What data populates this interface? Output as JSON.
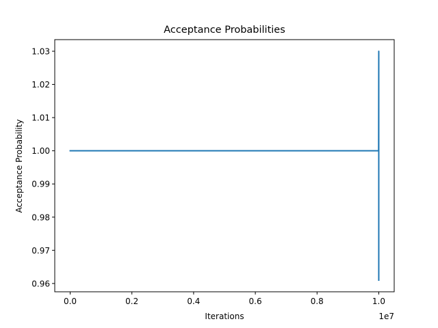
{
  "chart_data": {
    "type": "line",
    "title": "Acceptance Probabilities",
    "xlabel": "Iterations",
    "ylabel": "Acceptance Probability",
    "x_offset_label": "1e7",
    "xlim": [
      -0.05,
      1.05
    ],
    "ylim": [
      0.9575,
      1.0335
    ],
    "xticks": [
      0.0,
      0.2,
      0.4,
      0.6,
      0.8,
      1.0
    ],
    "xtick_labels": [
      "0.0",
      "0.2",
      "0.4",
      "0.6",
      "0.8",
      "1.0"
    ],
    "yticks": [
      0.96,
      0.97,
      0.98,
      0.99,
      1.0,
      1.01,
      1.02,
      1.03
    ],
    "ytick_labels": [
      "0.96",
      "0.97",
      "0.98",
      "0.99",
      "1.00",
      "1.01",
      "1.02",
      "1.03"
    ],
    "grid": false,
    "series": [
      {
        "color": "#1f77b4",
        "x": [
          0.0,
          0.995,
          0.997,
          0.998,
          0.999,
          0.9995,
          1.0,
          1.0
        ],
        "y": [
          1.0,
          1.0,
          1.0,
          1.0,
          1.0,
          1.0,
          1.03,
          0.961
        ]
      }
    ]
  }
}
